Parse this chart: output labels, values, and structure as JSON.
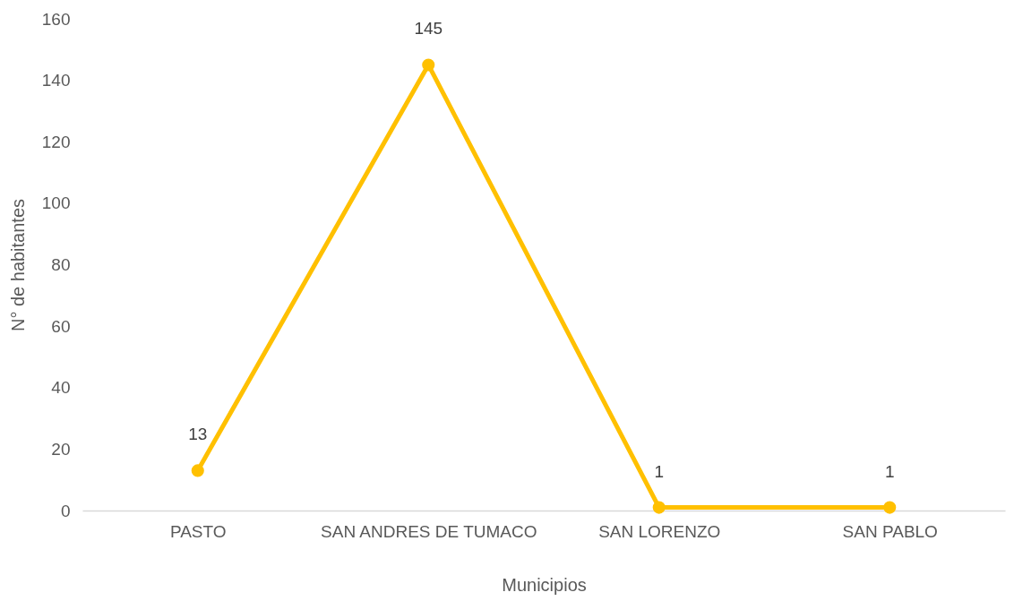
{
  "chart_data": {
    "type": "line",
    "xlabel": "Municipios",
    "ylabel": "N° de habitantes",
    "categories": [
      "PASTO",
      "SAN ANDRES DE TUMACO",
      "SAN LORENZO",
      "SAN PABLO"
    ],
    "values": [
      13,
      145,
      1,
      1
    ],
    "color": "#ffc000",
    "data_labels": true,
    "marker": "circle",
    "ylim": [
      0,
      160
    ],
    "yticks": [
      0,
      20,
      40,
      60,
      80,
      100,
      120,
      140,
      160
    ]
  }
}
